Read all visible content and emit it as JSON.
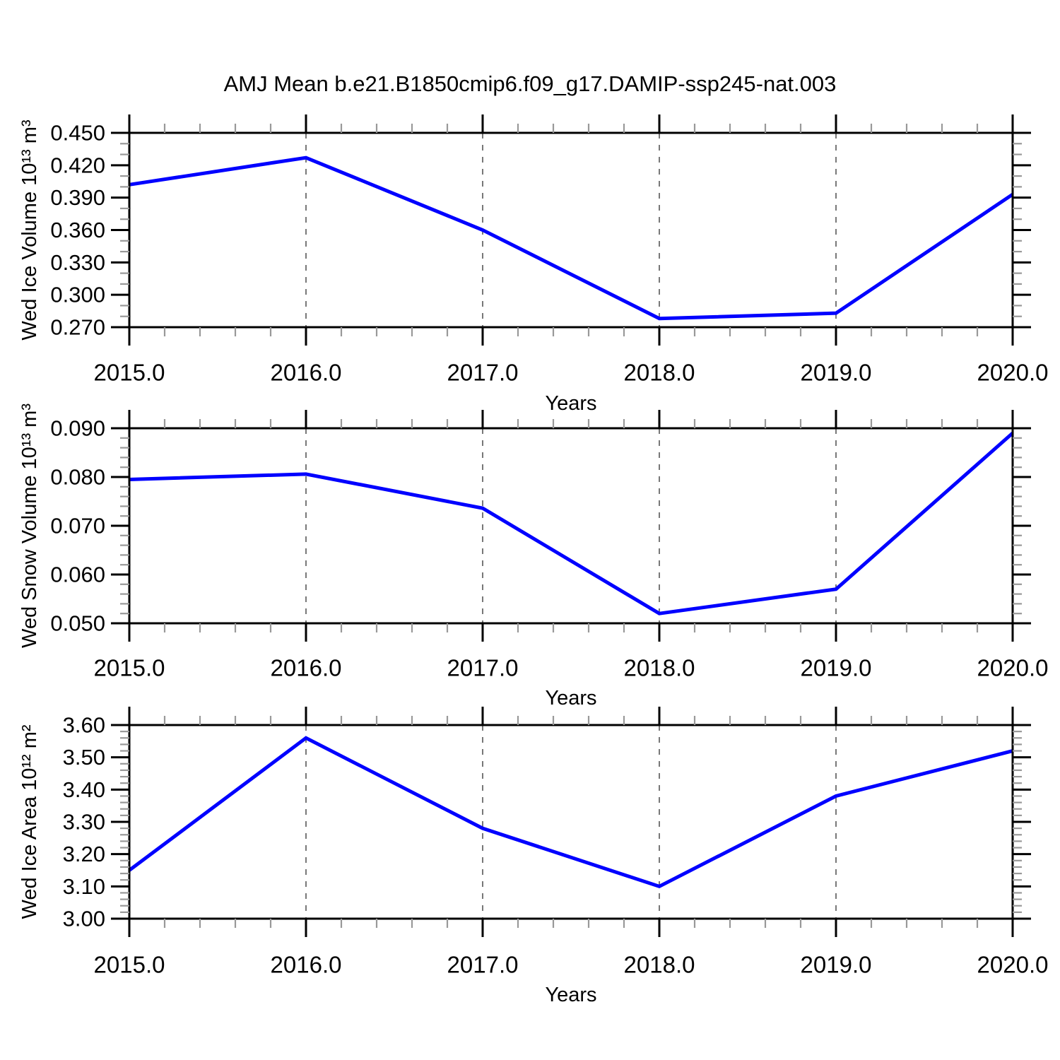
{
  "figure_title": "AMJ Mean b.e21.B1850cmip6.f09_g17.DAMIP-ssp245-nat.003",
  "colors": {
    "line": "#0000ff",
    "axis": "#000000",
    "major_tick": "#000000",
    "minor_tick": "#999999",
    "grid": "#787878",
    "text": "#000000",
    "background": "#ffffff"
  },
  "chart_data": [
    {
      "type": "line",
      "title": "",
      "xlabel": "Years",
      "ylabel": "Wed Ice Volume 10¹³ m³",
      "x": [
        2015.0,
        2016.0,
        2017.0,
        2018.0,
        2019.0,
        2020.0
      ],
      "values": [
        0.402,
        0.427,
        0.36,
        0.278,
        0.283,
        0.393
      ],
      "xlim": [
        2015.0,
        2020.0
      ],
      "ylim": [
        0.27,
        0.45
      ],
      "xtick_values": [
        2015.0,
        2016.0,
        2017.0,
        2018.0,
        2019.0,
        2020.0
      ],
      "xtick_labels": [
        "2015.0",
        "2016.0",
        "2017.0",
        "2018.0",
        "2019.0",
        "2020.0"
      ],
      "xtick_minor_step": 0.2,
      "ytick_values": [
        0.27,
        0.3,
        0.33,
        0.36,
        0.39,
        0.42,
        0.45
      ],
      "ytick_labels": [
        "0.270",
        "0.300",
        "0.330",
        "0.360",
        "0.390",
        "0.420",
        "0.450"
      ],
      "ytick_minor_step": 0.01,
      "grid_x": [
        2016.0,
        2017.0,
        2018.0,
        2019.0
      ],
      "grid_style": "vertical-dashed",
      "legend": null
    },
    {
      "type": "line",
      "title": "",
      "xlabel": "Years",
      "ylabel": "Wed Snow Volume 10¹³ m³",
      "x": [
        2015.0,
        2016.0,
        2017.0,
        2018.0,
        2019.0,
        2020.0
      ],
      "values": [
        0.0795,
        0.0806,
        0.0736,
        0.052,
        0.057,
        0.089
      ],
      "xlim": [
        2015.0,
        2020.0
      ],
      "ylim": [
        0.05,
        0.09
      ],
      "xtick_values": [
        2015.0,
        2016.0,
        2017.0,
        2018.0,
        2019.0,
        2020.0
      ],
      "xtick_labels": [
        "2015.0",
        "2016.0",
        "2017.0",
        "2018.0",
        "2019.0",
        "2020.0"
      ],
      "xtick_minor_step": 0.2,
      "ytick_values": [
        0.05,
        0.06,
        0.07,
        0.08,
        0.09
      ],
      "ytick_labels": [
        "0.050",
        "0.060",
        "0.070",
        "0.080",
        "0.090"
      ],
      "ytick_minor_step": 0.002,
      "grid_x": [
        2016.0,
        2017.0,
        2018.0,
        2019.0
      ],
      "grid_style": "vertical-dashed",
      "legend": null
    },
    {
      "type": "line",
      "title": "",
      "xlabel": "Years",
      "ylabel": "Wed Ice Area 10¹² m²",
      "x": [
        2015.0,
        2016.0,
        2017.0,
        2018.0,
        2019.0,
        2020.0
      ],
      "values": [
        3.15,
        3.56,
        3.28,
        3.1,
        3.38,
        3.52
      ],
      "xlim": [
        2015.0,
        2020.0
      ],
      "ylim": [
        3.0,
        3.6
      ],
      "xtick_values": [
        2015.0,
        2016.0,
        2017.0,
        2018.0,
        2019.0,
        2020.0
      ],
      "xtick_labels": [
        "2015.0",
        "2016.0",
        "2017.0",
        "2018.0",
        "2019.0",
        "2020.0"
      ],
      "xtick_minor_step": 0.2,
      "ytick_values": [
        3.0,
        3.1,
        3.2,
        3.3,
        3.4,
        3.5,
        3.6
      ],
      "ytick_labels": [
        "3.00",
        "3.10",
        "3.20",
        "3.30",
        "3.40",
        "3.50",
        "3.60"
      ],
      "ytick_minor_step": 0.02,
      "grid_x": [
        2016.0,
        2017.0,
        2018.0,
        2019.0
      ],
      "grid_style": "vertical-dashed",
      "legend": null
    }
  ]
}
